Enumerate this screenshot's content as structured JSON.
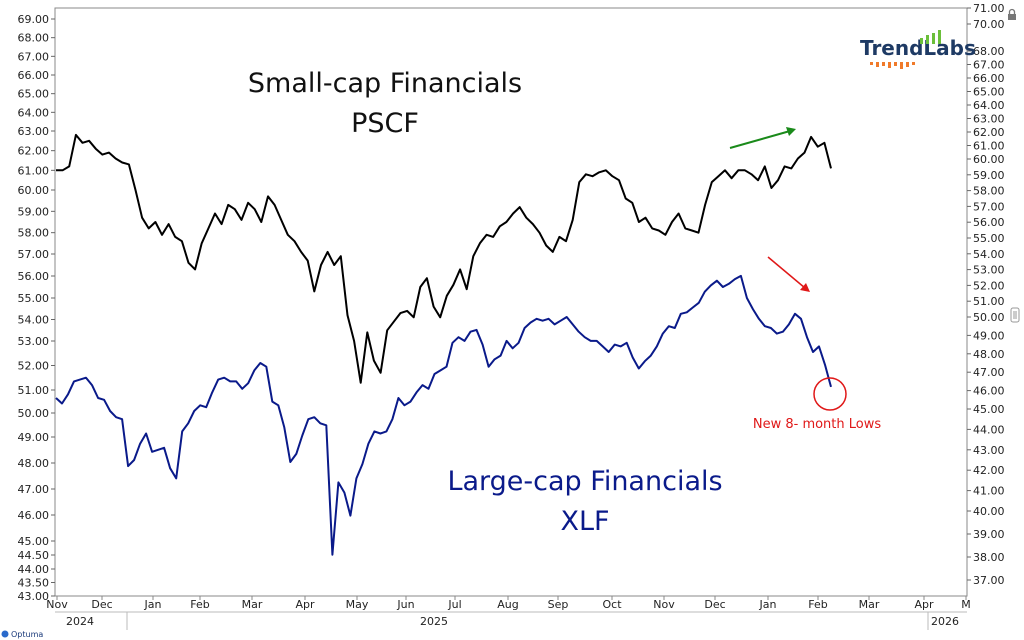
{
  "chart_data": {
    "type": "line",
    "series": [
      {
        "name": "Small-cap Financials PSCF",
        "color": "#000000",
        "axis": "left_top",
        "values": [
          61,
          61,
          61.2,
          62.8,
          62.4,
          62.5,
          62.1,
          61.8,
          61.9,
          61.6,
          61.4,
          61.3,
          60,
          58.7,
          58.2,
          58.5,
          57.9,
          58.4,
          57.8,
          57.6,
          56.6,
          56.3,
          57.5,
          58.2,
          58.9,
          58.4,
          59.3,
          59.1,
          58.6,
          59.4,
          59.1,
          58.5,
          59.7,
          59.3,
          58.6,
          57.9,
          57.6,
          57.1,
          56.7,
          55.3,
          56.5,
          57.1,
          56.5,
          56.9,
          54.2,
          53,
          51.3,
          53.4,
          52.2,
          51.7,
          53.5,
          53.9,
          54.3,
          54.4,
          54.1,
          55.5,
          55.9,
          54.6,
          54.1,
          55.1,
          55.6,
          56.3,
          55.4,
          56.9,
          57.5,
          57.9,
          57.8,
          58.3,
          58.5,
          58.9,
          59.2,
          58.7,
          58.4,
          58,
          57.4,
          57.1,
          57.8,
          57.6,
          58.6,
          60.4,
          60.8,
          60.7,
          60.9,
          61,
          60.7,
          60.5,
          59.6,
          59.4,
          58.5,
          58.7,
          58.2,
          58.1,
          57.9,
          58.5,
          58.9,
          58.2,
          58.1,
          58,
          59.3,
          60.4,
          60.7,
          61,
          60.6,
          61,
          61,
          60.8,
          60.5,
          61.2,
          60.1,
          60.5,
          61.2,
          61.1,
          61.6,
          61.9,
          62.7,
          62.2,
          62.4,
          61.1
        ],
        "label": "Small-cap Financials",
        "label_line2": "PSCF"
      },
      {
        "name": "Large-cap Financials XLF",
        "color": "#0a1a8a",
        "axis": "right_bottom",
        "values": [
          45.6,
          45.3,
          45.8,
          46.5,
          46.6,
          46.7,
          46.3,
          45.6,
          45.5,
          44.9,
          44.6,
          44.5,
          42.2,
          42.5,
          43.3,
          43.8,
          42.9,
          43,
          43.1,
          42.1,
          41.6,
          43.9,
          44.3,
          44.9,
          45.2,
          45.1,
          45.9,
          46.6,
          46.7,
          46.5,
          46.5,
          46.1,
          46.4,
          47.1,
          47.5,
          47.3,
          45.4,
          45.2,
          44.1,
          42.4,
          42.8,
          43.7,
          44.5,
          44.6,
          44.3,
          44.2,
          38.1,
          41.4,
          40.9,
          39.8,
          41.6,
          42.3,
          43.3,
          43.9,
          43.8,
          43.9,
          44.5,
          45.6,
          45.2,
          45.4,
          45.9,
          46.3,
          46.1,
          46.9,
          47.1,
          47.3,
          48.6,
          48.9,
          48.7,
          49.2,
          49.3,
          48.5,
          47.3,
          47.7,
          47.9,
          48.7,
          48.3,
          48.6,
          49.4,
          49.7,
          49.9,
          49.8,
          49.9,
          49.6,
          49.8,
          50,
          49.6,
          49.2,
          48.9,
          48.7,
          48.7,
          48.4,
          48.1,
          48.5,
          48.4,
          48.6,
          47.8,
          47.2,
          47.6,
          47.9,
          48.4,
          49.1,
          49.5,
          49.4,
          50.2,
          50.3,
          50.6,
          50.9,
          51.6,
          52,
          52.3,
          51.9,
          52.1,
          52.4,
          52.6,
          51.2,
          50.5,
          49.9,
          49.5,
          49.4,
          49.1,
          49.2,
          49.6,
          50.2,
          49.9,
          48.9,
          48.1,
          48.4,
          47.4,
          46.2
        ],
        "label": "Large-cap Financials",
        "label_line2": "XLF"
      }
    ],
    "left_axis": {
      "ticks": [
        "69.00",
        "68.00",
        "67.00",
        "66.00",
        "65.00",
        "64.00",
        "63.00",
        "62.00",
        "61.00",
        "60.00",
        "59.00",
        "58.00",
        "57.00",
        "56.00",
        "55.00",
        "54.00",
        "53.00",
        "52.00",
        "51.00",
        "50.00",
        "49.00",
        "48.00",
        "47.00",
        "46.00",
        "45.00",
        "44.50",
        "44.00",
        "43.50",
        "43.00"
      ]
    },
    "right_axis": {
      "ticks": [
        "71.00",
        "70.00",
        "68.00",
        "67.00",
        "66.00",
        "65.00",
        "64.00",
        "63.00",
        "62.00",
        "61.00",
        "60.00",
        "59.00",
        "58.00",
        "57.00",
        "56.00",
        "55.00",
        "54.00",
        "53.00",
        "52.00",
        "51.00",
        "50.00",
        "49.00",
        "48.00",
        "47.00",
        "46.00",
        "45.00",
        "44.00",
        "43.00",
        "42.00",
        "41.00",
        "40.00",
        "39.00",
        "38.00",
        "37.00"
      ]
    },
    "x_axis": {
      "months": [
        "Nov",
        "Dec",
        "Jan",
        "Feb",
        "Mar",
        "Apr",
        "May",
        "Jun",
        "Jul",
        "Aug",
        "Sep",
        "Oct",
        "Nov",
        "Dec",
        "Jan",
        "Feb",
        "Mar",
        "Apr",
        "M"
      ],
      "years": [
        "2024",
        "2025",
        "2026"
      ]
    },
    "annotations": {
      "new_lows": "New 8- month Lows"
    }
  },
  "brand": {
    "name": "TrendLabs",
    "footer_logo": "Optuma"
  },
  "colors": {
    "pscf": "#000000",
    "xlf": "#0a1a8a",
    "green_arrow": "#1a8a1a",
    "red": "#e01818",
    "brand_text": "#1e3a64",
    "brand_green": "#6bbf3a",
    "brand_orange": "#f07a2a"
  }
}
